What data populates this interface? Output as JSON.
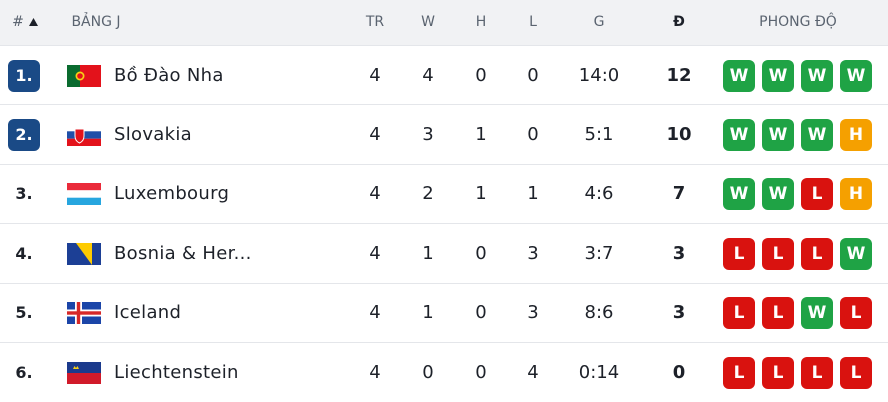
{
  "header": {
    "rank": "#",
    "group": "BẢNG J",
    "columns": [
      "TR",
      "W",
      "H",
      "L",
      "G",
      "Đ"
    ],
    "form": "PHONG ĐỘ"
  },
  "table": {
    "rows": [
      {
        "rank": "1.",
        "team": "Bồ Đào Nha",
        "stats": [
          4,
          4,
          0,
          0,
          "14:0",
          12
        ],
        "form": [
          "W",
          "W",
          "W",
          "W"
        ]
      },
      {
        "rank": "2.",
        "team": "Slovakia",
        "stats": [
          4,
          3,
          1,
          0,
          "5:1",
          10
        ],
        "form": [
          "W",
          "W",
          "W",
          "H"
        ]
      },
      {
        "rank": "3.",
        "team": "Luxembourg",
        "stats": [
          4,
          2,
          1,
          1,
          "4:6",
          7
        ],
        "form": [
          "W",
          "W",
          "L",
          "H"
        ]
      },
      {
        "rank": "4.",
        "team": "Bosnia & Her...",
        "stats": [
          4,
          1,
          0,
          3,
          "3:7",
          3
        ],
        "form": [
          "L",
          "L",
          "L",
          "W"
        ]
      },
      {
        "rank": "5.",
        "team": "Iceland",
        "stats": [
          4,
          1,
          0,
          3,
          "8:6",
          3
        ],
        "form": [
          "L",
          "L",
          "W",
          "L"
        ]
      },
      {
        "rank": "6.",
        "team": "Liechtenstein",
        "stats": [
          4,
          0,
          0,
          4,
          "0:14",
          0
        ],
        "form": [
          "L",
          "L",
          "L",
          "L"
        ]
      }
    ]
  }
}
